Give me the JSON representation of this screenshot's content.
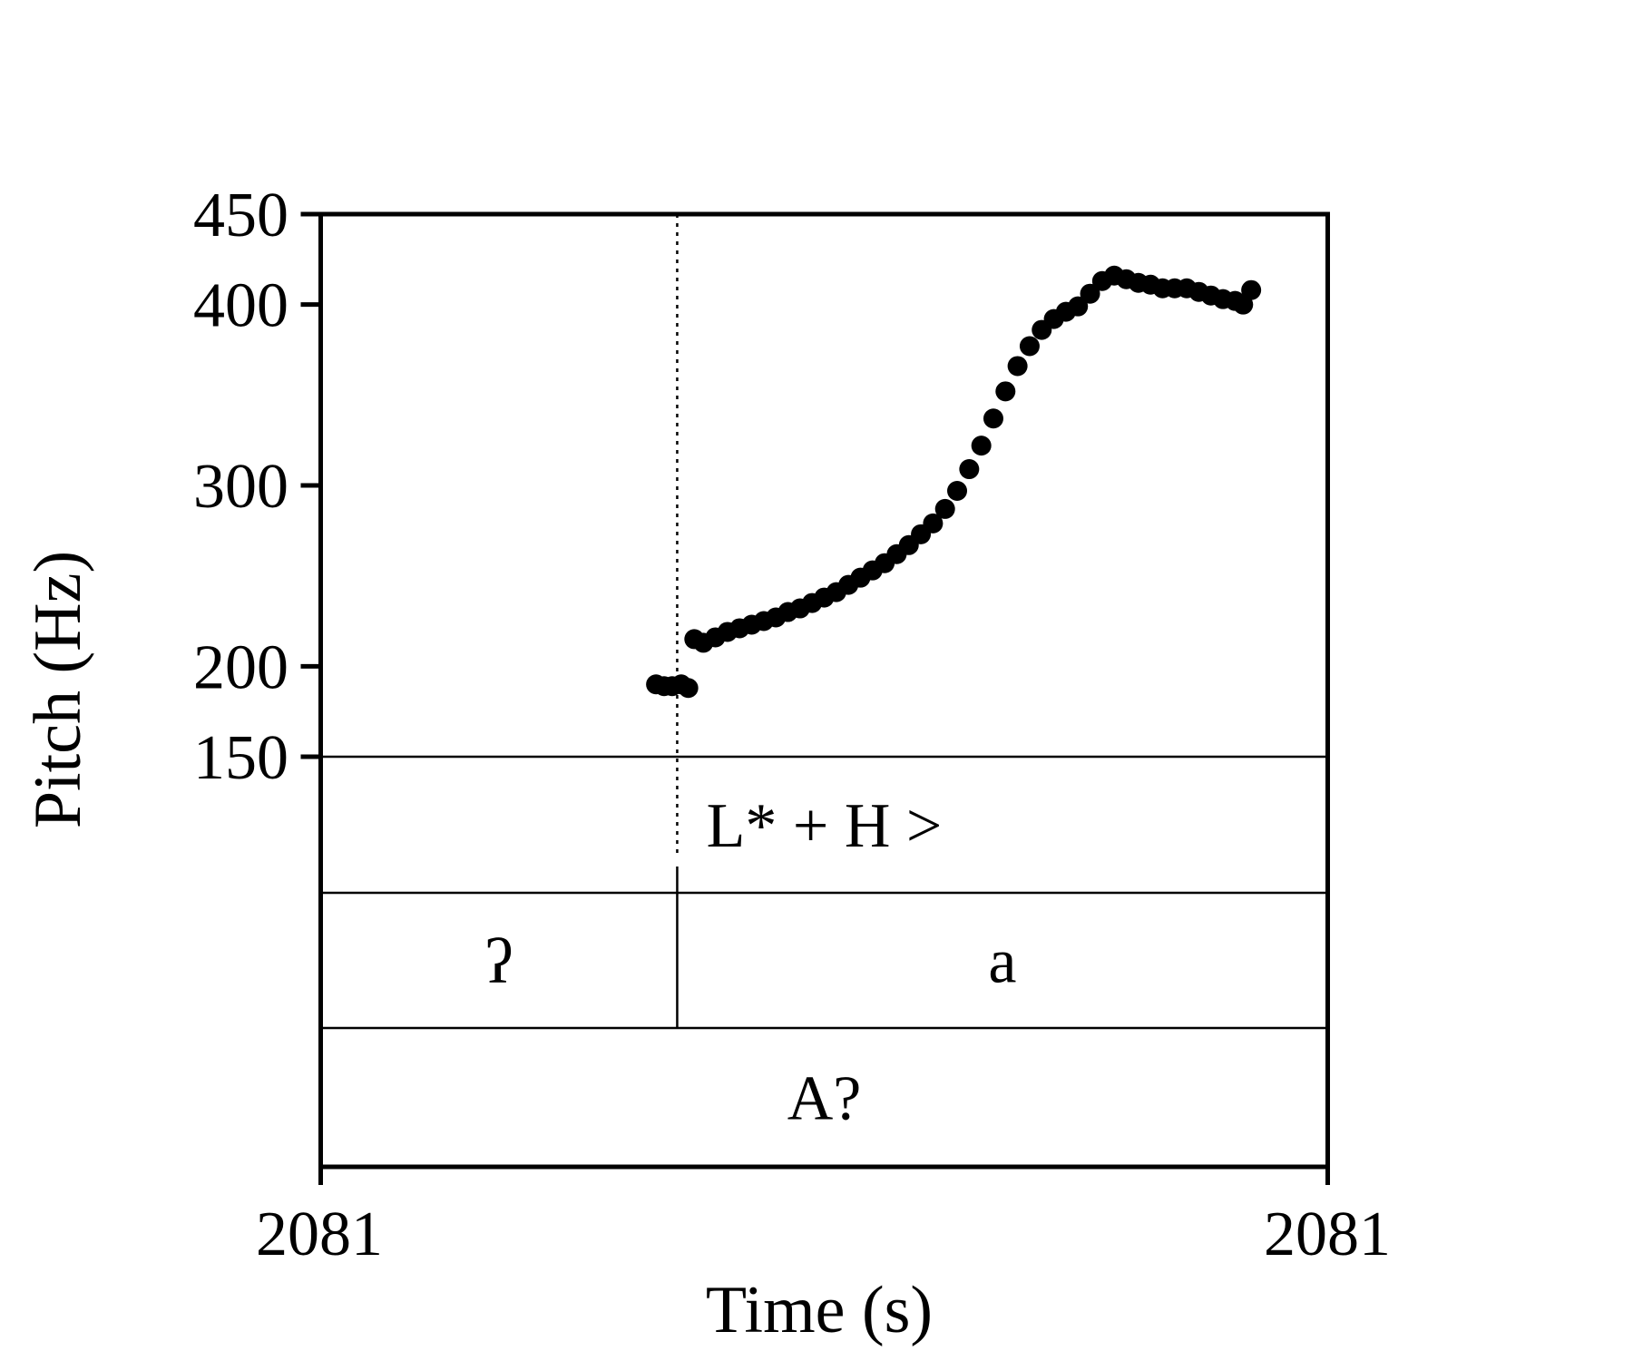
{
  "chart_data": {
    "type": "scatter",
    "title": "",
    "xlabel": "Time (s)",
    "ylabel": "Pitch (Hz)",
    "x_tick_labels": [
      "2081",
      "2081"
    ],
    "y_ticks": [
      150,
      200,
      300,
      400,
      450
    ],
    "y_tick_labels": [
      "150",
      "200",
      "300",
      "400",
      "450"
    ],
    "ylim": [
      150,
      450
    ],
    "xlim": [
      0,
      1
    ],
    "grid": false,
    "legend": "none",
    "marker_color": "#000000",
    "boundary_x": 0.354,
    "series": [
      {
        "values": [
          [
            0.333,
            190
          ],
          [
            0.341,
            189
          ],
          [
            0.349,
            189
          ],
          [
            0.358,
            190
          ],
          [
            0.365,
            188
          ]
        ]
      },
      {
        "values": [
          [
            0.371,
            215
          ],
          [
            0.38,
            213
          ],
          [
            0.392,
            216
          ],
          [
            0.404,
            219
          ],
          [
            0.416,
            221
          ],
          [
            0.428,
            223
          ],
          [
            0.44,
            225
          ],
          [
            0.452,
            227
          ],
          [
            0.464,
            230
          ],
          [
            0.476,
            232
          ],
          [
            0.488,
            235
          ],
          [
            0.5,
            238
          ],
          [
            0.512,
            241
          ],
          [
            0.524,
            245
          ],
          [
            0.536,
            249
          ],
          [
            0.548,
            253
          ],
          [
            0.56,
            257
          ],
          [
            0.572,
            262
          ],
          [
            0.584,
            267
          ],
          [
            0.596,
            273
          ],
          [
            0.608,
            279
          ],
          [
            0.62,
            287
          ],
          [
            0.632,
            297
          ],
          [
            0.644,
            309
          ],
          [
            0.656,
            322
          ],
          [
            0.668,
            337
          ],
          [
            0.68,
            352
          ],
          [
            0.692,
            366
          ],
          [
            0.704,
            377
          ],
          [
            0.716,
            386
          ],
          [
            0.728,
            392
          ],
          [
            0.74,
            396
          ],
          [
            0.752,
            399
          ],
          [
            0.764,
            406
          ],
          [
            0.776,
            413
          ],
          [
            0.788,
            416
          ],
          [
            0.8,
            414
          ],
          [
            0.812,
            412
          ],
          [
            0.824,
            411
          ],
          [
            0.836,
            409
          ],
          [
            0.848,
            409
          ],
          [
            0.86,
            409
          ],
          [
            0.872,
            407
          ],
          [
            0.884,
            405
          ],
          [
            0.896,
            403
          ],
          [
            0.908,
            402
          ],
          [
            0.916,
            400
          ],
          [
            0.924,
            408
          ]
        ]
      }
    ]
  },
  "tiers": [
    {
      "intervals": [
        {
          "label": "L* + H >",
          "start": 0.0,
          "end": 1.0
        }
      ]
    },
    {
      "intervals": [
        {
          "label": "ʔ",
          "start": 0.0,
          "end": 0.354
        },
        {
          "label": "a",
          "start": 0.354,
          "end": 1.0
        }
      ]
    },
    {
      "intervals": [
        {
          "label": "A?",
          "start": 0.0,
          "end": 1.0
        }
      ]
    }
  ]
}
